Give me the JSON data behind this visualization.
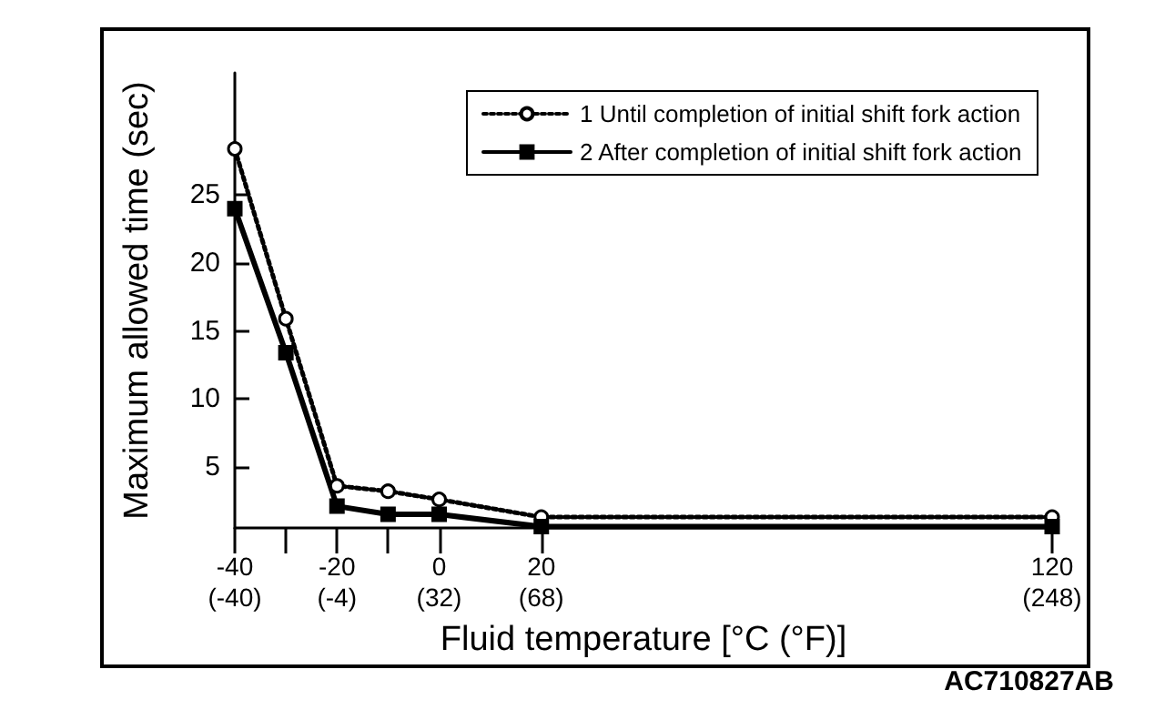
{
  "chart_data": {
    "type": "line",
    "xlabel": "Fluid temperature [°C (°F)]",
    "ylabel": "Maximum allowed time (sec)",
    "annotations": [
      "AC710827AB"
    ],
    "x": [
      -40,
      -30,
      -20,
      -10,
      0,
      20,
      120
    ],
    "series": [
      {
        "name": "1 Until completion of initial shift fork action",
        "color": "#000000",
        "marker": "circle",
        "line_style": "dotted",
        "values": [
          28.4,
          15.9,
          3.6,
          3.2,
          2.6,
          1.3,
          1.3
        ]
      },
      {
        "name": "2 After completion of initial shift fork action",
        "color": "#000000",
        "marker": "square",
        "line_style": "solid",
        "values": [
          24,
          13.4,
          2.1,
          1.5,
          1.5,
          0.6,
          0.6
        ]
      }
    ],
    "xlim": [
      -40,
      120
    ],
    "xticks": [
      -40,
      {
        "value": -30,
        "label": null
      },
      -20,
      {
        "value": -10,
        "label": null
      },
      0,
      20,
      120
    ],
    "x2lim": [
      -40,
      248
    ],
    "x2ticks": [
      {
        "value": -40,
        "label": "(-40)"
      },
      {
        "value": -4,
        "label": "(-4)"
      },
      {
        "value": 32,
        "label": "(32)"
      },
      {
        "value": 68,
        "label": "(68)"
      },
      {
        "value": 248,
        "label": "(248)"
      }
    ],
    "ylim": [
      0.5,
      34
    ],
    "yticks": [
      5,
      10,
      15,
      20,
      25
    ],
    "grid": false,
    "legend": "top right"
  }
}
